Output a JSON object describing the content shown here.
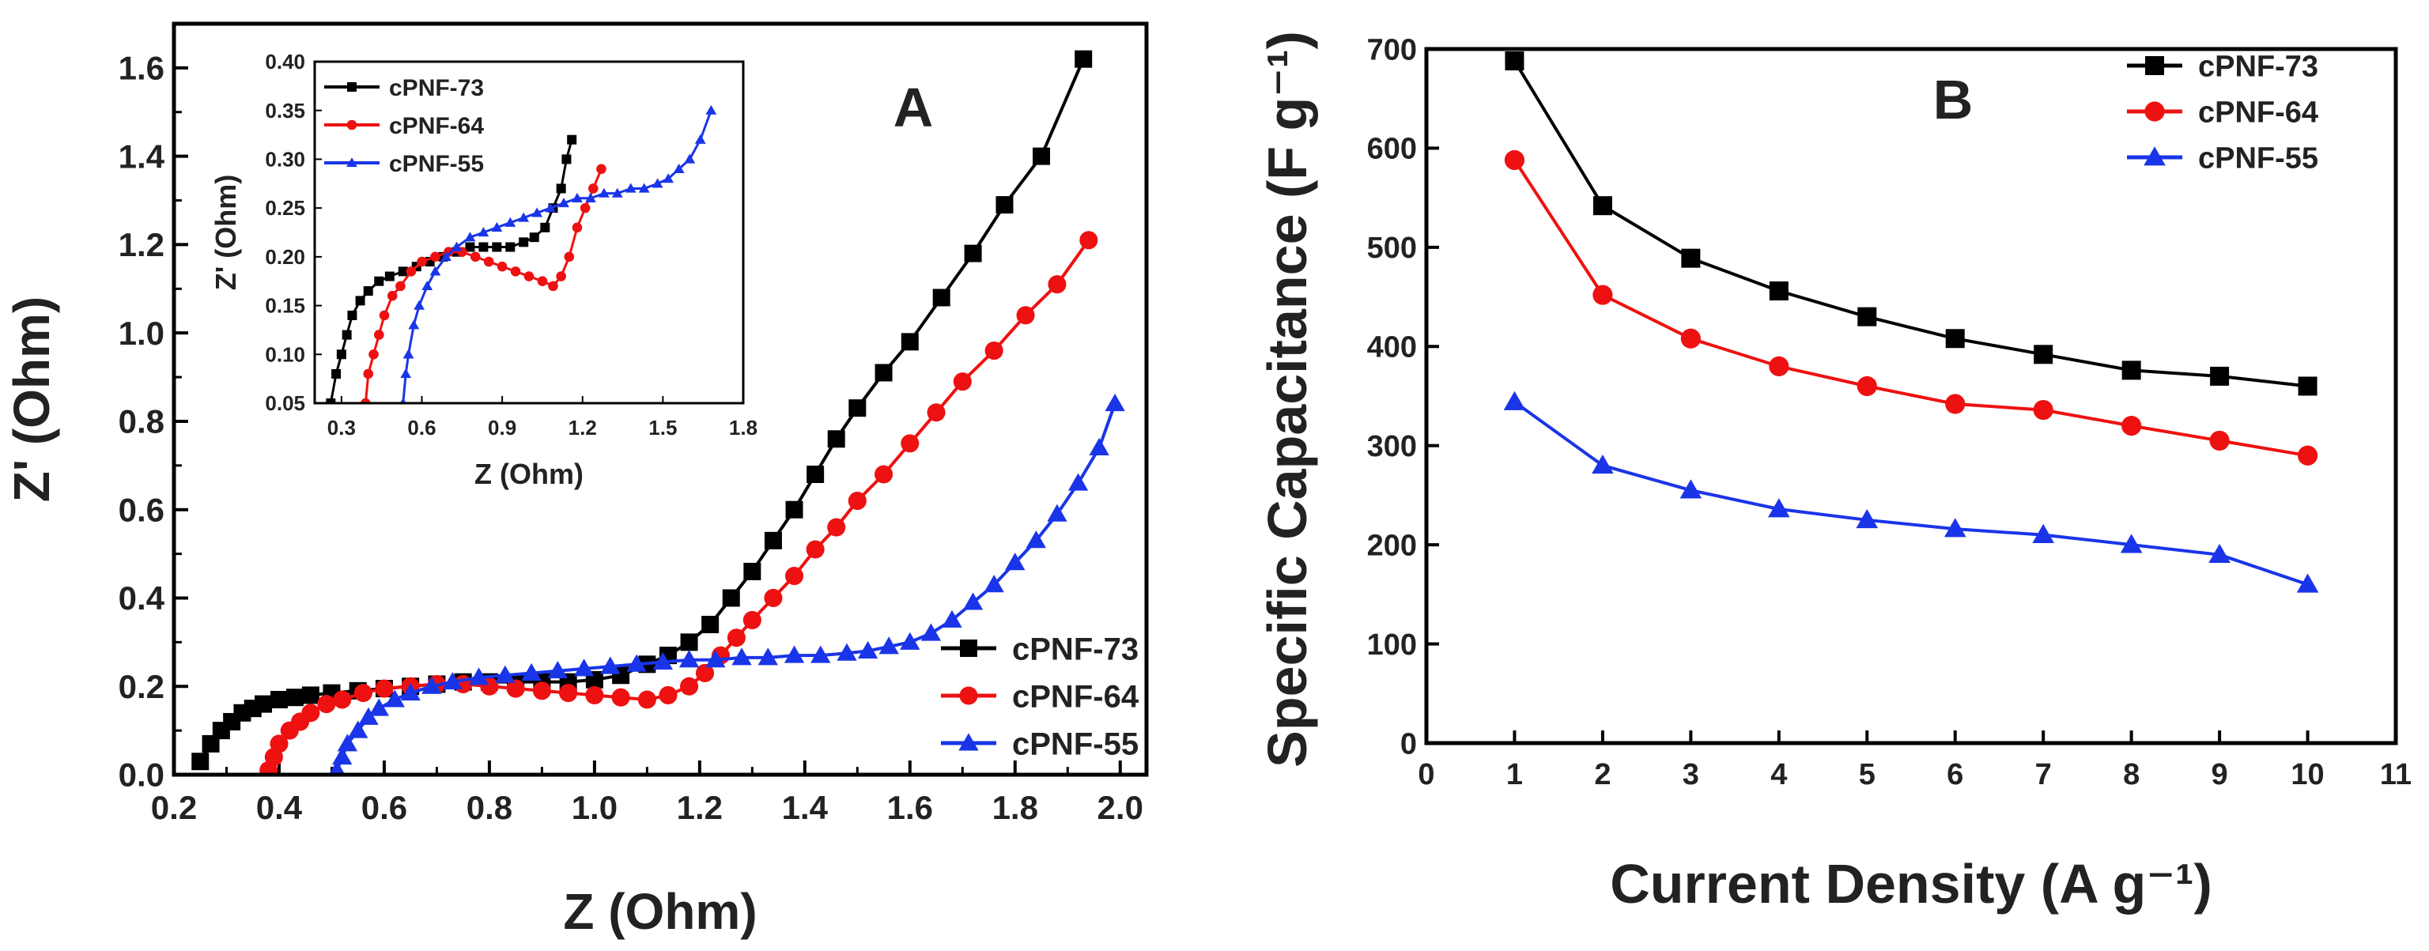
{
  "chart_data": [
    {
      "id": "panel-a",
      "type": "line",
      "panel_label": "A",
      "title": "",
      "xlabel": "Z (Ohm)",
      "ylabel": "Z' (Ohm)",
      "xlim": [
        0.2,
        2.05
      ],
      "ylim": [
        0.0,
        1.7
      ],
      "xticks": [
        "0.2",
        "0.4",
        "0.6",
        "0.8",
        "1.0",
        "1.2",
        "1.4",
        "1.6",
        "1.8",
        "2.0"
      ],
      "yticks": [
        "0.0",
        "0.2",
        "0.4",
        "0.6",
        "0.8",
        "1.0",
        "1.2",
        "1.4",
        "1.6"
      ],
      "legend_position": "bottom-right",
      "series": [
        {
          "name": "cPNF-73",
          "color": "#000000",
          "marker": "square",
          "x": [
            0.25,
            0.27,
            0.29,
            0.31,
            0.33,
            0.35,
            0.37,
            0.4,
            0.43,
            0.46,
            0.5,
            0.55,
            0.6,
            0.65,
            0.7,
            0.75,
            0.8,
            0.85,
            0.9,
            0.95,
            1.0,
            1.05,
            1.1,
            1.14,
            1.18,
            1.22,
            1.26,
            1.3,
            1.34,
            1.38,
            1.42,
            1.46,
            1.5,
            1.55,
            1.6,
            1.66,
            1.72,
            1.78,
            1.85,
            1.93
          ],
          "y": [
            0.03,
            0.07,
            0.1,
            0.12,
            0.14,
            0.15,
            0.16,
            0.17,
            0.175,
            0.18,
            0.185,
            0.19,
            0.195,
            0.2,
            0.205,
            0.21,
            0.21,
            0.21,
            0.21,
            0.21,
            0.215,
            0.225,
            0.25,
            0.27,
            0.3,
            0.34,
            0.4,
            0.46,
            0.53,
            0.6,
            0.68,
            0.76,
            0.83,
            0.91,
            0.98,
            1.08,
            1.18,
            1.29,
            1.4,
            1.62
          ]
        },
        {
          "name": "cPNF-64",
          "color": "#ee1111",
          "marker": "circle",
          "x": [
            0.38,
            0.39,
            0.4,
            0.42,
            0.44,
            0.46,
            0.49,
            0.52,
            0.56,
            0.6,
            0.65,
            0.7,
            0.75,
            0.8,
            0.85,
            0.9,
            0.95,
            1.0,
            1.05,
            1.1,
            1.14,
            1.18,
            1.21,
            1.24,
            1.27,
            1.3,
            1.34,
            1.38,
            1.42,
            1.46,
            1.5,
            1.55,
            1.6,
            1.65,
            1.7,
            1.76,
            1.82,
            1.88,
            1.94
          ],
          "y": [
            0.01,
            0.04,
            0.07,
            0.1,
            0.12,
            0.14,
            0.16,
            0.17,
            0.185,
            0.195,
            0.2,
            0.205,
            0.205,
            0.2,
            0.195,
            0.19,
            0.185,
            0.18,
            0.175,
            0.17,
            0.18,
            0.2,
            0.23,
            0.27,
            0.31,
            0.35,
            0.4,
            0.45,
            0.51,
            0.56,
            0.62,
            0.68,
            0.75,
            0.82,
            0.89,
            0.96,
            1.04,
            1.11,
            1.21
          ]
        },
        {
          "name": "cPNF-55",
          "color": "#1a35e8",
          "marker": "triangle",
          "x": [
            0.51,
            0.52,
            0.53,
            0.55,
            0.57,
            0.59,
            0.62,
            0.65,
            0.69,
            0.73,
            0.78,
            0.83,
            0.88,
            0.93,
            0.98,
            1.03,
            1.08,
            1.13,
            1.18,
            1.23,
            1.28,
            1.33,
            1.38,
            1.43,
            1.48,
            1.52,
            1.56,
            1.6,
            1.64,
            1.68,
            1.72,
            1.76,
            1.8,
            1.84,
            1.88,
            1.92,
            1.96,
            1.99
          ],
          "y": [
            0.01,
            0.04,
            0.07,
            0.1,
            0.13,
            0.15,
            0.17,
            0.185,
            0.2,
            0.21,
            0.22,
            0.225,
            0.23,
            0.235,
            0.24,
            0.245,
            0.25,
            0.255,
            0.26,
            0.26,
            0.265,
            0.265,
            0.27,
            0.27,
            0.275,
            0.28,
            0.29,
            0.3,
            0.32,
            0.35,
            0.39,
            0.43,
            0.48,
            0.53,
            0.59,
            0.66,
            0.74,
            0.84
          ]
        }
      ]
    },
    {
      "id": "panel-a-inset",
      "type": "line",
      "title": "",
      "xlabel": "Z (Ohm)",
      "ylabel": "Z' (Ohm)",
      "xlim": [
        0.2,
        1.8
      ],
      "ylim": [
        0.05,
        0.4
      ],
      "xticks": [
        "0.3",
        "0.6",
        "0.9",
        "1.2",
        "1.5",
        "1.8"
      ],
      "yticks": [
        "0.05",
        "0.10",
        "0.15",
        "0.20",
        "0.25",
        "0.30",
        "0.35",
        "0.40"
      ],
      "legend_position": "top-left",
      "series": [
        {
          "name": "cPNF-73",
          "color": "#000000",
          "marker": "square",
          "x": [
            0.26,
            0.28,
            0.3,
            0.32,
            0.34,
            0.37,
            0.4,
            0.44,
            0.48,
            0.53,
            0.58,
            0.63,
            0.68,
            0.73,
            0.78,
            0.83,
            0.88,
            0.93,
            0.98,
            1.02,
            1.06,
            1.09,
            1.12,
            1.14,
            1.16
          ],
          "y": [
            0.05,
            0.08,
            0.1,
            0.12,
            0.14,
            0.155,
            0.165,
            0.175,
            0.18,
            0.185,
            0.19,
            0.195,
            0.2,
            0.205,
            0.21,
            0.21,
            0.21,
            0.21,
            0.215,
            0.22,
            0.23,
            0.25,
            0.27,
            0.3,
            0.32
          ]
        },
        {
          "name": "cPNF-64",
          "color": "#ee1111",
          "marker": "circle",
          "x": [
            0.39,
            0.4,
            0.42,
            0.44,
            0.46,
            0.49,
            0.52,
            0.56,
            0.6,
            0.65,
            0.7,
            0.75,
            0.8,
            0.85,
            0.9,
            0.95,
            1.0,
            1.05,
            1.09,
            1.12,
            1.15,
            1.18,
            1.21,
            1.24,
            1.27
          ],
          "y": [
            0.05,
            0.08,
            0.1,
            0.12,
            0.14,
            0.16,
            0.17,
            0.185,
            0.195,
            0.2,
            0.205,
            0.205,
            0.2,
            0.195,
            0.19,
            0.185,
            0.18,
            0.175,
            0.17,
            0.18,
            0.2,
            0.23,
            0.25,
            0.27,
            0.29
          ]
        },
        {
          "name": "cPNF-55",
          "color": "#1a35e8",
          "marker": "triangle",
          "x": [
            0.53,
            0.54,
            0.55,
            0.57,
            0.59,
            0.62,
            0.65,
            0.69,
            0.73,
            0.78,
            0.83,
            0.88,
            0.93,
            0.98,
            1.03,
            1.08,
            1.13,
            1.18,
            1.23,
            1.28,
            1.33,
            1.38,
            1.43,
            1.48,
            1.52,
            1.56,
            1.6,
            1.64,
            1.68
          ],
          "y": [
            0.05,
            0.08,
            0.1,
            0.13,
            0.15,
            0.17,
            0.185,
            0.2,
            0.21,
            0.22,
            0.225,
            0.23,
            0.235,
            0.24,
            0.245,
            0.25,
            0.255,
            0.26,
            0.26,
            0.265,
            0.265,
            0.27,
            0.27,
            0.275,
            0.28,
            0.29,
            0.3,
            0.32,
            0.35
          ]
        }
      ]
    },
    {
      "id": "panel-b",
      "type": "line",
      "panel_label": "B",
      "title": "",
      "xlabel": "Current Density (A g⁻¹)",
      "ylabel": "Specific Capacitance (F g⁻¹)",
      "xlim": [
        0,
        11
      ],
      "ylim": [
        0,
        700
      ],
      "xticks": [
        "0",
        "1",
        "2",
        "3",
        "4",
        "5",
        "6",
        "7",
        "8",
        "9",
        "10",
        "11"
      ],
      "yticks": [
        "0",
        "100",
        "200",
        "300",
        "400",
        "500",
        "600",
        "700"
      ],
      "legend_position": "top-right",
      "series": [
        {
          "name": "cPNF-73",
          "color": "#000000",
          "marker": "square",
          "x": [
            1,
            2,
            3,
            4,
            5,
            6,
            7,
            8,
            9,
            10
          ],
          "y": [
            688,
            542,
            489,
            456,
            430,
            408,
            392,
            376,
            370,
            360
          ]
        },
        {
          "name": "cPNF-64",
          "color": "#ee1111",
          "marker": "circle",
          "x": [
            1,
            2,
            3,
            4,
            5,
            6,
            7,
            8,
            9,
            10
          ],
          "y": [
            588,
            452,
            408,
            380,
            360,
            342,
            336,
            320,
            305,
            290
          ]
        },
        {
          "name": "cPNF-55",
          "color": "#1a35e8",
          "marker": "triangle",
          "x": [
            1,
            2,
            3,
            4,
            5,
            6,
            7,
            8,
            9,
            10
          ],
          "y": [
            344,
            280,
            255,
            236,
            225,
            216,
            210,
            200,
            190,
            160
          ]
        }
      ]
    }
  ]
}
